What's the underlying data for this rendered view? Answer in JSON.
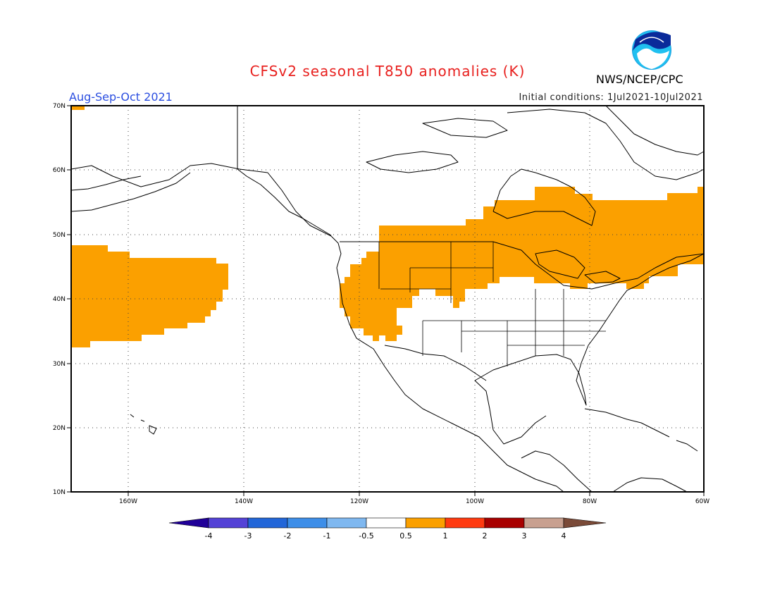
{
  "header": {
    "title": "CFSv2 seasonal T850 anomalies (K)",
    "season": "Aug-Sep-Oct 2021",
    "initial_conditions": "Initial conditions: 1Jul2021-10Jul2021",
    "agency": "NWS/NCEP/CPC",
    "title_color": "#e8201e",
    "season_color": "#2b4ee0"
  },
  "map": {
    "lat_labels": [
      "70N",
      "60N",
      "50N",
      "40N",
      "30N",
      "20N",
      "10N"
    ],
    "lon_labels": [
      "160W",
      "140W",
      "120W",
      "100W",
      "80W",
      "60W"
    ],
    "anomaly_fill_color": "#fba000",
    "lat_range": [
      10,
      70
    ],
    "lon_range": [
      -172,
      -60
    ]
  },
  "colorbar": {
    "labels": [
      "-4",
      "-3",
      "-2",
      "-1",
      "-0.5",
      "0.5",
      "1",
      "2",
      "3",
      "4"
    ],
    "colors": [
      "#200098",
      "#5442d6",
      "#2266d8",
      "#3d8ee8",
      "#7fb8f0",
      "#ffffff",
      "#fba000",
      "#ff3a10",
      "#a80000",
      "#c8a090",
      "#7a4a38"
    ]
  }
}
